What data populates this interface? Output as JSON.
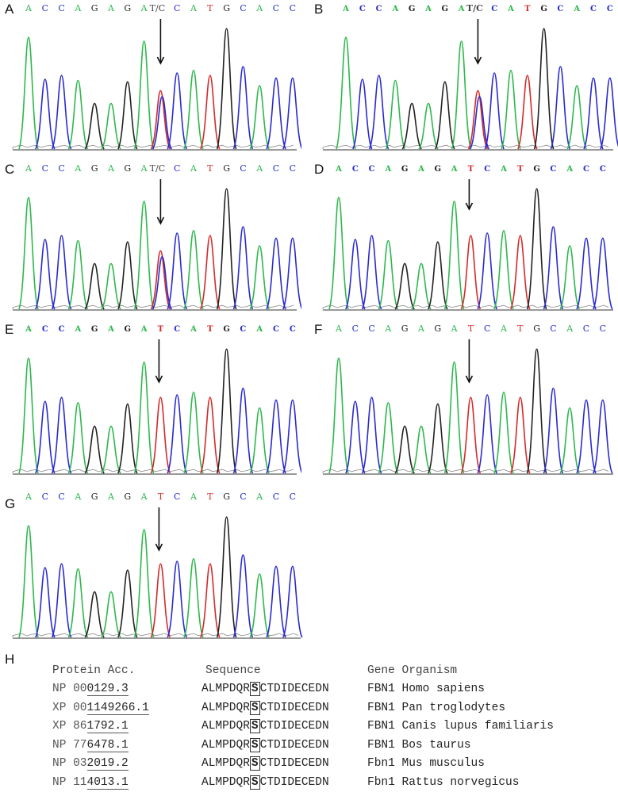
{
  "bases": [
    "A",
    "C",
    "C",
    "A",
    "G",
    "A",
    "G",
    "A",
    "T",
    "C",
    "A",
    "T",
    "G",
    "C",
    "A",
    "C",
    "C"
  ],
  "colors": {
    "A": "#2db84d",
    "C": "#2a2ad0",
    "G": "#222222",
    "T": "#d42a2a"
  },
  "panels": [
    {
      "label": "A",
      "seq": [
        "A",
        "C",
        "C",
        "A",
        "G",
        "A",
        "G",
        "A",
        "T/C",
        "C",
        "A",
        "T",
        "G",
        "C",
        "A",
        "C",
        "C"
      ],
      "mutation_text": "T/C",
      "bold": false
    },
    {
      "label": "B",
      "seq": [
        "A",
        "C",
        "C",
        "A",
        "G",
        "A",
        "G",
        "A",
        "T/C",
        "C",
        "A",
        "T",
        "G",
        "C",
        "A",
        "C",
        "C"
      ],
      "mutation_text": "T/C",
      "bold": true
    },
    {
      "label": "C",
      "seq": [
        "A",
        "C",
        "C",
        "A",
        "G",
        "A",
        "G",
        "A",
        "T/C",
        "C",
        "A",
        "T",
        "G",
        "C",
        "A",
        "C",
        "C"
      ],
      "mutation_text": "T/C",
      "bold": false
    },
    {
      "label": "D",
      "seq": [
        "A",
        "C",
        "C",
        "A",
        "G",
        "A",
        "G",
        "A",
        "T",
        "C",
        "A",
        "T",
        "G",
        "C",
        "A",
        "C",
        "C"
      ],
      "mutation_text": "",
      "bold": true
    },
    {
      "label": "E",
      "seq": [
        "A",
        "C",
        "C",
        "A",
        "G",
        "A",
        "G",
        "A",
        "T",
        "C",
        "A",
        "T",
        "G",
        "C",
        "A",
        "C",
        "C"
      ],
      "mutation_text": "",
      "bold": true
    },
    {
      "label": "F",
      "seq": [
        "A",
        "C",
        "C",
        "A",
        "G",
        "A",
        "G",
        "A",
        "T",
        "C",
        "A",
        "T",
        "G",
        "C",
        "A",
        "C",
        "C"
      ],
      "mutation_text": "",
      "bold": false
    },
    {
      "label": "G",
      "seq": [
        "A",
        "C",
        "C",
        "A",
        "G",
        "A",
        "G",
        "A",
        "T",
        "C",
        "A",
        "T",
        "G",
        "C",
        "A",
        "C",
        "C"
      ],
      "mutation_text": "",
      "bold": false
    }
  ],
  "table": {
    "label": "H",
    "headers": {
      "acc": "Protein Acc.",
      "seq": "Sequence",
      "gene_org": "Gene Organism"
    },
    "rows": [
      {
        "acc_a": "NP 00",
        "acc_b": "0129.3",
        "seq_pre": "ALMPDQR",
        "seq_box": "S",
        "seq_post": "CTDIDECEDN",
        "gene": "FBN1",
        "organism": "Homo sapiens"
      },
      {
        "acc_a": "XP 00",
        "acc_b": "1149266.1",
        "seq_pre": "ALMPDQR",
        "seq_box": "S",
        "seq_post": "CTDIDECEDN",
        "gene": "FBN1",
        "organism": "Pan troglodytes"
      },
      {
        "acc_a": "XP 86",
        "acc_b": "1792.1",
        "seq_pre": "ALMPDQR",
        "seq_box": "S",
        "seq_post": "CTDIDECEDN",
        "gene": "FBN1",
        "organism": "Canis lupus familiaris"
      },
      {
        "acc_a": "NP 77",
        "acc_b": "6478.1",
        "seq_pre": "ALMPDQR",
        "seq_box": "S",
        "seq_post": "CTDIDECEDN",
        "gene": "FBN1",
        "organism": "Bos taurus"
      },
      {
        "acc_a": "NP 03",
        "acc_b": "2019.2",
        "seq_pre": "ALMPDQR",
        "seq_box": "S",
        "seq_post": "CTDIDECEDN",
        "gene": "Fbn1",
        "organism": "Mus musculus"
      },
      {
        "acc_a": "NP 11",
        "acc_b": "4013.1",
        "seq_pre": "ALMPDQR",
        "seq_box": "S",
        "seq_post": "CTDIDECEDN",
        "gene": "Fbn1",
        "organism": "Rattus norvegicus"
      }
    ]
  }
}
